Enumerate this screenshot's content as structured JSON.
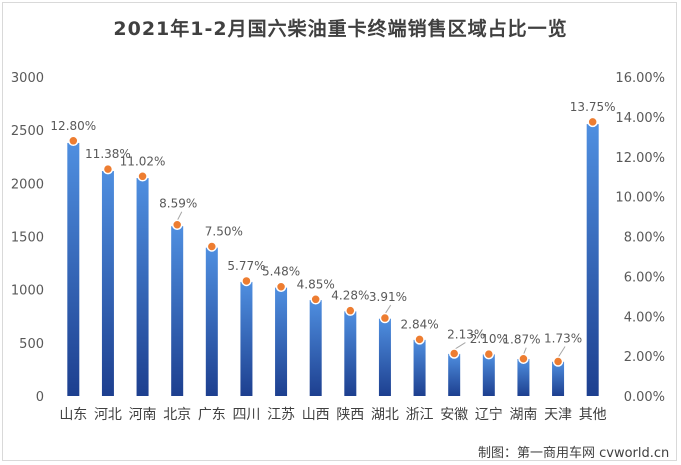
{
  "title": "2021年1-2月国六柴油重卡终端销售区域占比一览",
  "credit": "制图：第一商用车网 cvworld.cn",
  "colors": {
    "bar_top": "#4f8fe0",
    "bar_bottom": "#1d3f8f",
    "marker_fill": "#ed7d31",
    "marker_stroke": "#ffffff",
    "grid": "#d9d9d9"
  },
  "chart_data": {
    "type": "bar",
    "title": "2021年1-2月国六柴油重卡终端销售区域占比一览",
    "categories": [
      "山东",
      "河北",
      "河南",
      "北京",
      "广东",
      "四川",
      "江苏",
      "山西",
      "陕西",
      "湖北",
      "浙江",
      "安徽",
      "辽宁",
      "湖南",
      "天津",
      "其他"
    ],
    "series": [
      {
        "axis": "left",
        "values": [
          2380,
          2116,
          2050,
          1597,
          1395,
          1073,
          1019,
          902,
          796,
          727,
          528,
          396,
          391,
          348,
          322,
          2557
        ]
      },
      {
        "axis": "right",
        "values": [
          12.8,
          11.38,
          11.02,
          8.59,
          7.5,
          5.77,
          5.48,
          4.85,
          4.28,
          3.91,
          2.84,
          2.13,
          2.1,
          1.87,
          1.73,
          13.75
        ],
        "labels": [
          "12.80%",
          "11.38%",
          "11.02%",
          "8.59%",
          "7.50%",
          "5.77%",
          "5.48%",
          "4.85%",
          "4.28%",
          "3.91%",
          "2.84%",
          "2.13%",
          "2.10%",
          "1.87%",
          "1.73%",
          "13.75%"
        ]
      }
    ],
    "y_left": {
      "min": 0,
      "max": 3000,
      "ticks": [
        "0",
        "500",
        "1000",
        "1500",
        "2000",
        "2500",
        "3000"
      ]
    },
    "y_right": {
      "min": 0,
      "max": 16,
      "ticks": [
        "0.00%",
        "2.00%",
        "4.00%",
        "6.00%",
        "8.00%",
        "10.00%",
        "12.00%",
        "14.00%",
        "16.00%"
      ]
    },
    "grid": false,
    "legend": "none"
  }
}
